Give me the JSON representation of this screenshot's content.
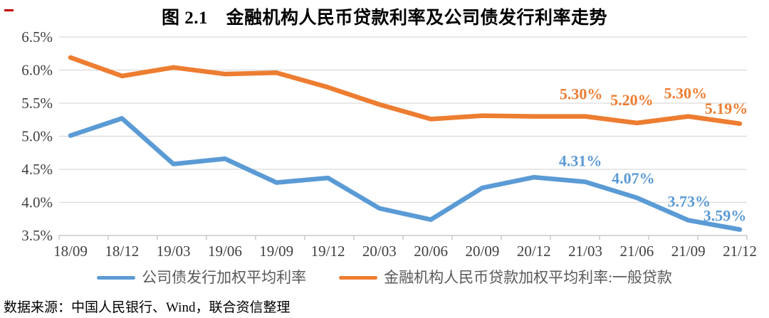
{
  "title": "图 2.1　金融机构人民币贷款利率及公司债发行利率走势",
  "source_note": "数据来源：中国人民银行、Wind，联合资信整理",
  "annotation": {
    "red_dash_color": "#C00000"
  },
  "colors": {
    "corporate_bond_line": "#5B9BD5",
    "loan_rate_line": "#ED7D31",
    "gridline": "#D9D9D9",
    "axis_line": "#BFBFBF",
    "axis_text": "#404040",
    "legend_text": "#595959"
  },
  "chart_data": {
    "type": "line",
    "title": "图 2.1　金融机构人民币贷款利率及公司债发行利率走势",
    "categories": [
      "18/09",
      "18/12",
      "19/03",
      "19/06",
      "19/09",
      "19/12",
      "20/03",
      "20/06",
      "20/09",
      "20/12",
      "21/03",
      "21/06",
      "21/09",
      "21/12"
    ],
    "y_axis": {
      "min": 3.5,
      "max": 6.5,
      "step": 0.5,
      "unit": "%",
      "ticks": [
        "6.5%",
        "6.0%",
        "5.5%",
        "5.0%",
        "4.5%",
        "4.0%",
        "3.5%"
      ]
    },
    "grid": "horizontal",
    "legend_position": "bottom",
    "series": [
      {
        "name": "公司债发行加权平均利率",
        "color": "#5B9BD5",
        "values": [
          5.01,
          5.27,
          4.58,
          4.66,
          4.3,
          4.37,
          3.91,
          3.74,
          4.22,
          4.38,
          4.31,
          4.07,
          3.73,
          3.59
        ],
        "point_labels": [
          null,
          null,
          null,
          null,
          null,
          null,
          null,
          null,
          null,
          null,
          "4.31%",
          "4.07%",
          "3.73%",
          "3.59%"
        ]
      },
      {
        "name": "金融机构人民币贷款加权平均利率:一般贷款",
        "color": "#ED7D31",
        "values": [
          6.19,
          5.91,
          6.04,
          5.94,
          5.96,
          5.74,
          5.48,
          5.26,
          5.31,
          5.3,
          5.3,
          5.2,
          5.3,
          5.19
        ],
        "point_labels": [
          null,
          null,
          null,
          null,
          null,
          null,
          null,
          null,
          null,
          null,
          "5.30%",
          "5.20%",
          "5.30%",
          "5.19%"
        ]
      }
    ]
  }
}
